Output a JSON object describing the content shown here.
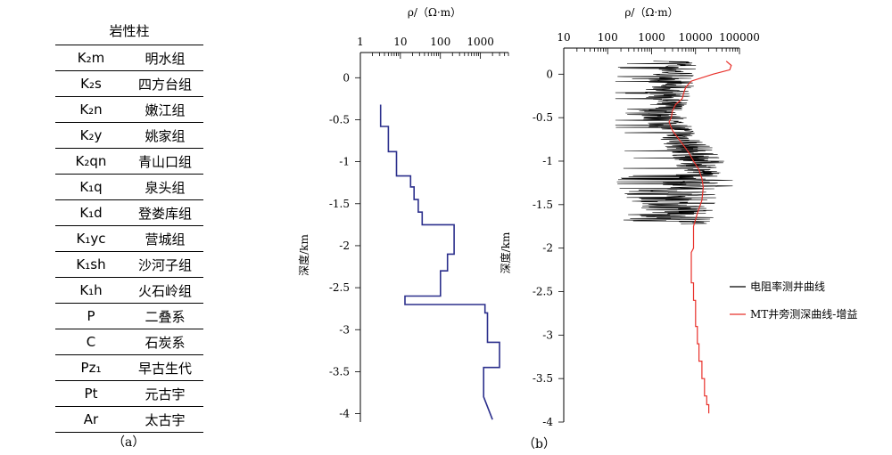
{
  "panel_a": {
    "title": "岩性柱",
    "caption": "（a）",
    "rows": [
      {
        "symbol": "K₂m",
        "name": "明水组"
      },
      {
        "symbol": "K₂s",
        "name": "四方台组"
      },
      {
        "symbol": "K₂n",
        "name": "嫩江组"
      },
      {
        "symbol": "K₂y",
        "name": "姚家组"
      },
      {
        "symbol": "K₂qn",
        "name": "青山口组"
      },
      {
        "symbol": "K₁q",
        "name": "泉头组"
      },
      {
        "symbol": "K₁d",
        "name": "登娄库组"
      },
      {
        "symbol": "K₁yc",
        "name": "营城组"
      },
      {
        "symbol": "K₁sh",
        "name": "沙河子组"
      },
      {
        "symbol": "K₁h",
        "name": "火石岭组"
      },
      {
        "symbol": "P",
        "name": "二叠系"
      },
      {
        "symbol": "C",
        "name": "石炭系"
      },
      {
        "symbol": "Pz₁",
        "name": "早古生代"
      },
      {
        "symbol": "Pt",
        "name": "元古宇"
      },
      {
        "symbol": "Ar",
        "name": "太古宇"
      }
    ]
  },
  "panel_b": {
    "caption": "（b）"
  },
  "colors": {
    "model_line": "#2b2f8c",
    "well_log": "#000000",
    "mt_curve": "#e8302a"
  },
  "chart_data": [
    {
      "type": "line",
      "xlabel": "ρ/（Ω·m）",
      "ylabel": "深度/km",
      "xscale": "log",
      "xlim": [
        1,
        5000
      ],
      "ylim": [
        -4.1,
        0.3
      ],
      "xticks": [
        "1",
        "10",
        "100",
        "1000"
      ],
      "yticks": [
        "0",
        "-0.5",
        "-1",
        "-1.5",
        "-2",
        "-2.5",
        "-3",
        "-3.5",
        "-4"
      ],
      "series": [
        {
          "style": "step",
          "x": [
            3.2,
            3.2,
            5,
            5,
            8,
            8,
            18,
            18,
            22,
            22,
            28,
            28,
            35,
            35,
            220,
            220,
            150,
            150,
            100,
            100,
            13,
            13,
            1300,
            1300,
            1500,
            1500,
            3000,
            3000,
            1200,
            1200,
            2000
          ],
          "y": [
            -0.32,
            -0.58,
            -0.58,
            -0.88,
            -0.88,
            -1.17,
            -1.17,
            -1.3,
            -1.3,
            -1.45,
            -1.45,
            -1.6,
            -1.6,
            -1.75,
            -1.75,
            -2.1,
            -2.1,
            -2.3,
            -2.3,
            -2.6,
            -2.6,
            -2.7,
            -2.7,
            -2.8,
            -2.8,
            -3.15,
            -3.15,
            -3.45,
            -3.45,
            -3.8,
            -4.07
          ]
        }
      ]
    },
    {
      "type": "line",
      "xlabel": "ρ/（Ω·m）",
      "ylabel": "深度/km",
      "xscale": "log",
      "xlim": [
        10,
        100000
      ],
      "ylim": [
        -4.0,
        0.3
      ],
      "xticks": [
        "10",
        "100",
        "1000",
        "10000",
        "100000"
      ],
      "yticks": [
        "0",
        "-0.5",
        "-1",
        "-1.5",
        "-2",
        "-2.5",
        "-3",
        "-3.5",
        "-4"
      ],
      "legend_position": "right",
      "series": [
        {
          "name": "电阻率测井曲线",
          "color": "#000000",
          "depth_range": [
            0.15,
            -1.72
          ],
          "rho_range": [
            150,
            70000
          ]
        },
        {
          "name": "MT井旁测深曲线-增益",
          "color": "#e8302a",
          "x": [
            50000,
            65000,
            60000,
            25000,
            8000,
            6000,
            5500,
            5000,
            3500,
            3000,
            2800,
            2500,
            3000,
            5000,
            7000,
            9000,
            12000,
            14000,
            15000,
            14000,
            11000,
            9000,
            9000,
            9000,
            8000,
            8000,
            9000,
            9000,
            10000,
            10000,
            11000,
            11000,
            12000,
            12000,
            14000,
            14000,
            16000,
            16000,
            18000,
            18000,
            20000,
            20000
          ],
          "y": [
            0.15,
            0.1,
            0.05,
            0.0,
            -0.08,
            -0.15,
            -0.2,
            -0.28,
            -0.35,
            -0.42,
            -0.5,
            -0.55,
            -0.65,
            -0.8,
            -0.9,
            -1.0,
            -1.1,
            -1.2,
            -1.3,
            -1.45,
            -1.6,
            -1.75,
            -1.85,
            -2.0,
            -2.05,
            -2.4,
            -2.4,
            -2.6,
            -2.6,
            -2.9,
            -2.9,
            -3.1,
            -3.1,
            -3.3,
            -3.3,
            -3.5,
            -3.5,
            -3.7,
            -3.7,
            -3.8,
            -3.8,
            -3.9
          ]
        }
      ]
    }
  ]
}
